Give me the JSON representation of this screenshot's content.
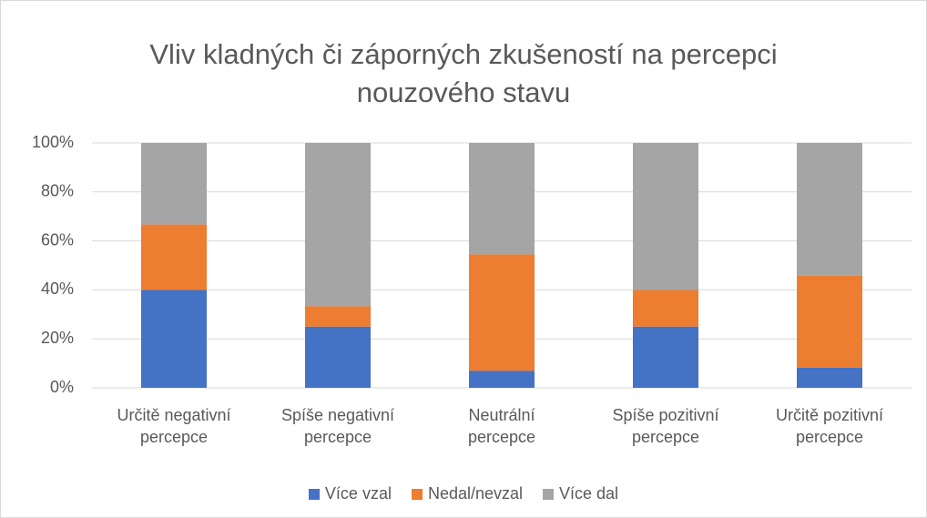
{
  "chart_data": {
    "type": "bar",
    "stacked": true,
    "title": "Vliv kladných či záporných zkušeností na percepci nouzového stavu",
    "categories": [
      "Určitě negativní\npercepce",
      "Spíše negativní\npercepce",
      "Neutrální\npercepce",
      "Spíše pozitivní\npercepce",
      "Určitě pozitivní\npercepce"
    ],
    "series": [
      {
        "name": "Více vzal",
        "color": "#4472c4",
        "values": [
          40,
          25,
          7,
          25,
          8.3
        ]
      },
      {
        "name": "Nedal/nevzal",
        "color": "#ed7d31",
        "values": [
          26.7,
          8.3,
          47.5,
          15,
          37.5
        ]
      },
      {
        "name": "Více dal",
        "color": "#a5a5a5",
        "values": [
          33.3,
          66.7,
          45.5,
          60,
          54.2
        ]
      }
    ],
    "ylim": [
      0,
      100
    ],
    "yticks": [
      {
        "value": 0,
        "label": "0%"
      },
      {
        "value": 20,
        "label": "20%"
      },
      {
        "value": 40,
        "label": "40%"
      },
      {
        "value": 60,
        "label": "60%"
      },
      {
        "value": 80,
        "label": "80%"
      },
      {
        "value": 100,
        "label": "100%"
      }
    ],
    "grid": true,
    "legend": "bottom"
  }
}
